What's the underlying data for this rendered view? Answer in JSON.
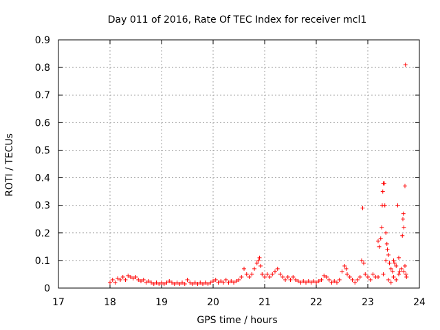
{
  "chart_data": {
    "type": "scatter",
    "title": "Day 011 of 2016, Rate Of TEC Index for receiver mcl1",
    "xlabel": "GPS time / hours",
    "ylabel": "ROTI / TECUs",
    "xlim": [
      17,
      24
    ],
    "ylim": [
      0,
      0.9
    ],
    "xticks": [
      "17",
      "18",
      "19",
      "20",
      "21",
      "22",
      "23",
      "24"
    ],
    "yticks": [
      "0",
      "0.1",
      "0.2",
      "0.3",
      "0.4",
      "0.5",
      "0.6",
      "0.7",
      "0.8",
      "0.9"
    ],
    "grid": true,
    "marker": "+",
    "color": "#ff0000",
    "series": [
      {
        "points": [
          [
            18.0,
            0.02
          ],
          [
            18.05,
            0.03
          ],
          [
            18.1,
            0.02
          ],
          [
            18.15,
            0.035
          ],
          [
            18.2,
            0.03
          ],
          [
            18.25,
            0.04
          ],
          [
            18.3,
            0.03
          ],
          [
            18.35,
            0.045
          ],
          [
            18.4,
            0.04
          ],
          [
            18.45,
            0.035
          ],
          [
            18.5,
            0.04
          ],
          [
            18.55,
            0.03
          ],
          [
            18.6,
            0.025
          ],
          [
            18.65,
            0.03
          ],
          [
            18.7,
            0.02
          ],
          [
            18.75,
            0.025
          ],
          [
            18.8,
            0.02
          ],
          [
            18.85,
            0.015
          ],
          [
            18.9,
            0.02
          ],
          [
            18.95,
            0.015
          ],
          [
            19.0,
            0.02
          ],
          [
            19.05,
            0.015
          ],
          [
            19.1,
            0.02
          ],
          [
            19.15,
            0.025
          ],
          [
            19.2,
            0.02
          ],
          [
            19.25,
            0.015
          ],
          [
            19.3,
            0.02
          ],
          [
            19.35,
            0.015
          ],
          [
            19.4,
            0.02
          ],
          [
            19.45,
            0.015
          ],
          [
            19.5,
            0.03
          ],
          [
            19.55,
            0.02
          ],
          [
            19.6,
            0.015
          ],
          [
            19.65,
            0.02
          ],
          [
            19.7,
            0.015
          ],
          [
            19.75,
            0.02
          ],
          [
            19.8,
            0.015
          ],
          [
            19.85,
            0.02
          ],
          [
            19.9,
            0.015
          ],
          [
            19.95,
            0.02
          ],
          [
            20.0,
            0.025
          ],
          [
            20.05,
            0.03
          ],
          [
            20.1,
            0.02
          ],
          [
            20.15,
            0.025
          ],
          [
            20.2,
            0.02
          ],
          [
            20.25,
            0.03
          ],
          [
            20.3,
            0.02
          ],
          [
            20.35,
            0.025
          ],
          [
            20.4,
            0.02
          ],
          [
            20.45,
            0.025
          ],
          [
            20.5,
            0.03
          ],
          [
            20.55,
            0.04
          ],
          [
            20.6,
            0.07
          ],
          [
            20.65,
            0.05
          ],
          [
            20.7,
            0.04
          ],
          [
            20.75,
            0.05
          ],
          [
            20.8,
            0.07
          ],
          [
            20.85,
            0.09
          ],
          [
            20.88,
            0.1
          ],
          [
            20.9,
            0.11
          ],
          [
            20.92,
            0.08
          ],
          [
            20.95,
            0.05
          ],
          [
            21.0,
            0.04
          ],
          [
            21.05,
            0.05
          ],
          [
            21.1,
            0.04
          ],
          [
            21.15,
            0.05
          ],
          [
            21.2,
            0.06
          ],
          [
            21.25,
            0.07
          ],
          [
            21.3,
            0.05
          ],
          [
            21.35,
            0.04
          ],
          [
            21.4,
            0.03
          ],
          [
            21.45,
            0.04
          ],
          [
            21.5,
            0.03
          ],
          [
            21.55,
            0.04
          ],
          [
            21.6,
            0.03
          ],
          [
            21.65,
            0.025
          ],
          [
            21.7,
            0.02
          ],
          [
            21.75,
            0.025
          ],
          [
            21.8,
            0.02
          ],
          [
            21.85,
            0.025
          ],
          [
            21.9,
            0.02
          ],
          [
            21.95,
            0.025
          ],
          [
            22.0,
            0.02
          ],
          [
            22.05,
            0.025
          ],
          [
            22.1,
            0.03
          ],
          [
            22.15,
            0.045
          ],
          [
            22.2,
            0.04
          ],
          [
            22.25,
            0.03
          ],
          [
            22.3,
            0.02
          ],
          [
            22.35,
            0.025
          ],
          [
            22.4,
            0.02
          ],
          [
            22.45,
            0.03
          ],
          [
            22.5,
            0.06
          ],
          [
            22.55,
            0.08
          ],
          [
            22.58,
            0.07
          ],
          [
            22.6,
            0.05
          ],
          [
            22.65,
            0.04
          ],
          [
            22.7,
            0.03
          ],
          [
            22.75,
            0.02
          ],
          [
            22.8,
            0.03
          ],
          [
            22.85,
            0.04
          ],
          [
            22.88,
            0.1
          ],
          [
            22.9,
            0.29
          ],
          [
            22.92,
            0.09
          ],
          [
            22.95,
            0.05
          ],
          [
            23.0,
            0.04
          ],
          [
            23.05,
            0.03
          ],
          [
            23.1,
            0.05
          ],
          [
            23.15,
            0.04
          ],
          [
            23.2,
            0.17
          ],
          [
            23.22,
            0.15
          ],
          [
            23.25,
            0.18
          ],
          [
            23.27,
            0.22
          ],
          [
            23.28,
            0.3
          ],
          [
            23.29,
            0.35
          ],
          [
            23.3,
            0.38
          ],
          [
            23.32,
            0.38
          ],
          [
            23.33,
            0.3
          ],
          [
            23.35,
            0.2
          ],
          [
            23.37,
            0.16
          ],
          [
            23.38,
            0.14
          ],
          [
            23.4,
            0.12
          ],
          [
            23.42,
            0.09
          ],
          [
            23.45,
            0.07
          ],
          [
            23.48,
            0.06
          ],
          [
            23.5,
            0.1
          ],
          [
            23.52,
            0.09
          ],
          [
            23.55,
            0.08
          ],
          [
            23.58,
            0.3
          ],
          [
            23.6,
            0.11
          ],
          [
            23.62,
            0.06
          ],
          [
            23.65,
            0.07
          ],
          [
            23.67,
            0.19
          ],
          [
            23.68,
            0.25
          ],
          [
            23.69,
            0.27
          ],
          [
            23.7,
            0.22
          ],
          [
            23.72,
            0.37
          ],
          [
            23.73,
            0.81
          ],
          [
            23.74,
            0.05
          ],
          [
            23.75,
            0.04
          ],
          [
            23.2,
            0.04
          ],
          [
            23.3,
            0.05
          ],
          [
            23.4,
            0.03
          ],
          [
            23.5,
            0.04
          ],
          [
            23.6,
            0.05
          ],
          [
            23.7,
            0.06
          ],
          [
            23.72,
            0.08
          ],
          [
            23.35,
            0.1
          ],
          [
            23.45,
            0.02
          ],
          [
            23.55,
            0.03
          ]
        ]
      }
    ]
  }
}
